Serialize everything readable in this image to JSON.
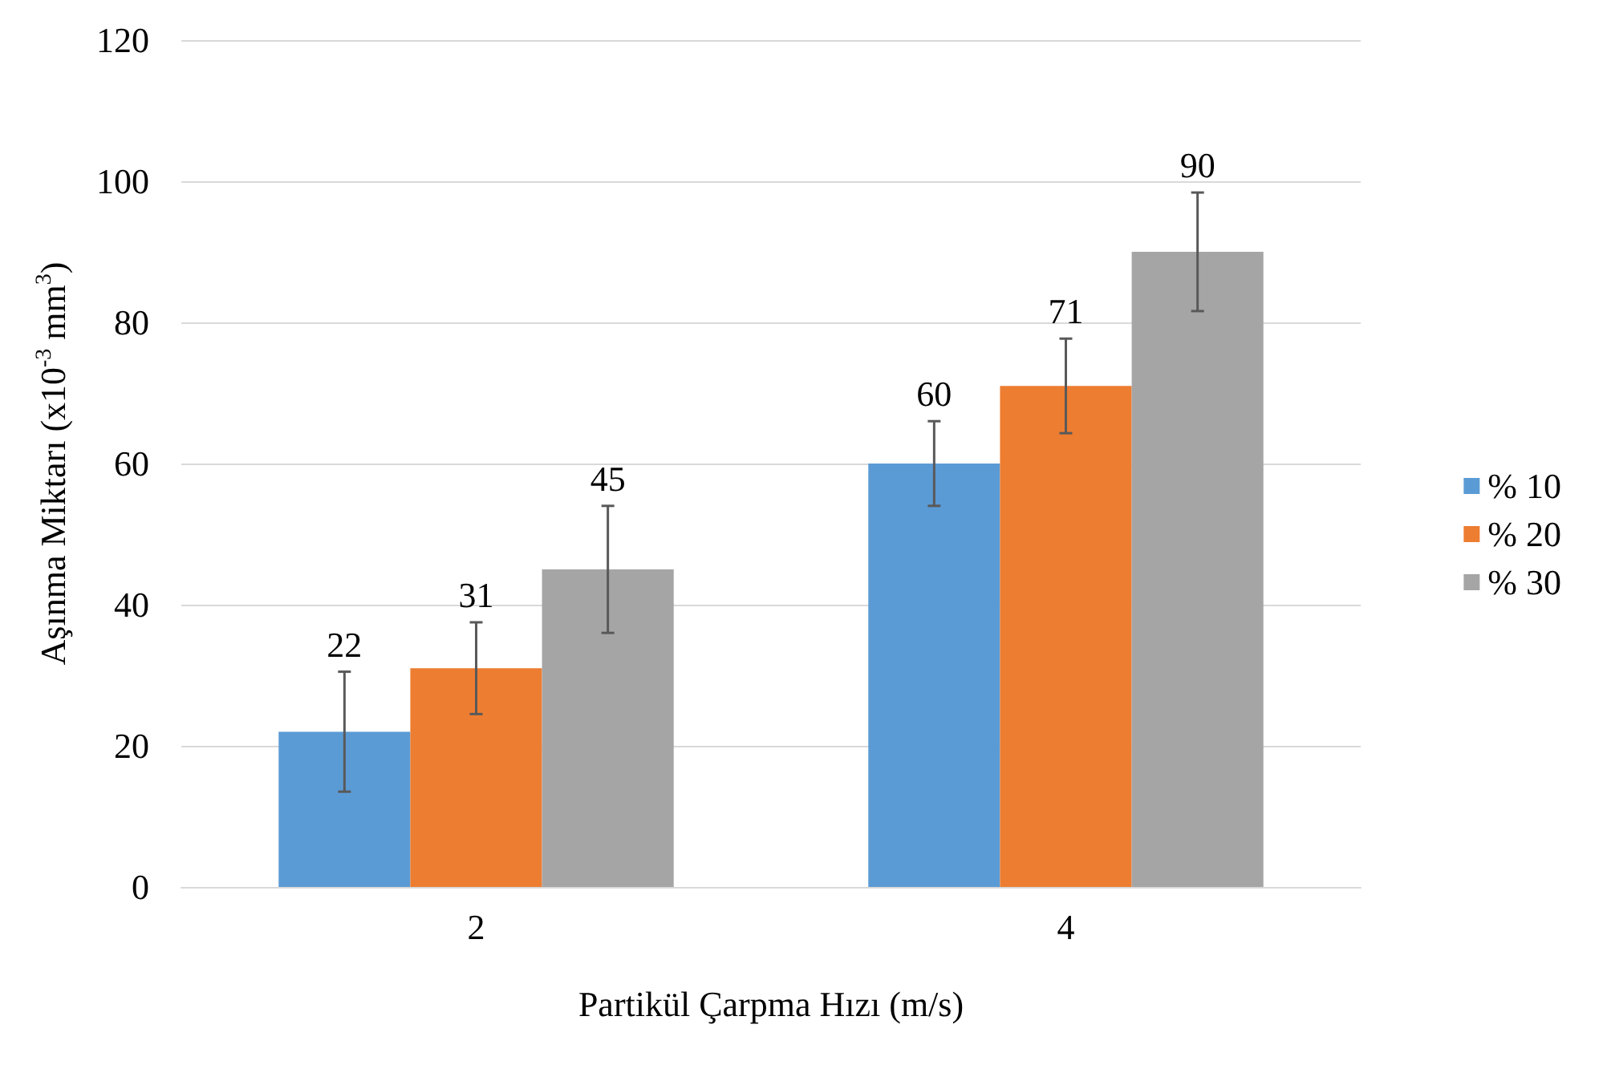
{
  "chart_data": {
    "type": "bar",
    "xlabel": "Partikül Çarpma Hızı (m/s)",
    "ylabel": "Aşınma Miktarı (x10$^{-3}$ mm$^{3}$)",
    "categories": [
      "2",
      "4"
    ],
    "series": [
      {
        "name": "% 10",
        "color": "#5b9bd5",
        "values": [
          22,
          60
        ],
        "errors": [
          8.5,
          6
        ]
      },
      {
        "name": "% 20",
        "color": "#ed7d31",
        "values": [
          31,
          71
        ],
        "errors": [
          6.5,
          6.7
        ]
      },
      {
        "name": "% 30",
        "color": "#a5a5a5",
        "values": [
          45,
          90
        ],
        "errors": [
          9,
          8.4
        ]
      }
    ],
    "ylim": [
      0,
      120
    ],
    "yticks": [
      0,
      20,
      40,
      60,
      80,
      100,
      120
    ],
    "grid": "y",
    "legend": "right",
    "data_labels": true
  }
}
